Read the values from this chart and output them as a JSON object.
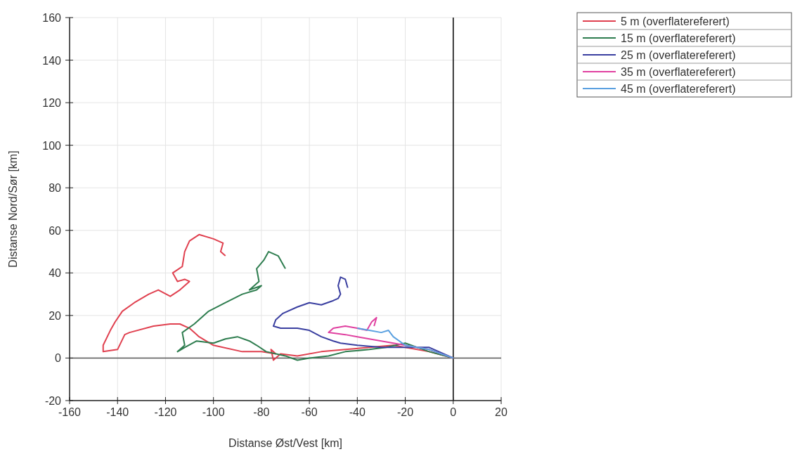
{
  "chart_data": {
    "type": "line",
    "xlabel": "Distanse Øst/Vest [km]",
    "ylabel": "Distanse Nord/Sør [km]",
    "xlim": [
      -160,
      20
    ],
    "ylim": [
      -20,
      160
    ],
    "xticks": [
      -160,
      -140,
      -120,
      -100,
      -80,
      -60,
      -40,
      -20,
      0,
      20
    ],
    "yticks": [
      -20,
      0,
      20,
      40,
      60,
      80,
      100,
      120,
      140,
      160
    ],
    "grid": true,
    "legend": "top right",
    "line_style": "solid",
    "marker": "none",
    "ref_lines": [
      {
        "axis": "x",
        "value": 0,
        "color": "#000000"
      },
      {
        "axis": "y",
        "value": 0,
        "color": "#555555"
      }
    ],
    "series": [
      {
        "name": "5 m (overflatereferert)",
        "color": "#e0404f",
        "x": [
          0,
          -10,
          -25,
          -35,
          -45,
          -55,
          -65,
          -72,
          -75,
          -76,
          -74,
          -80,
          -88,
          -100,
          -106,
          -108,
          -110,
          -114,
          -118,
          -125,
          -135,
          -137,
          -140,
          -146,
          -146,
          -143,
          -141,
          -138,
          -133,
          -127,
          -123,
          -118,
          -114,
          -110,
          -112,
          -115,
          -117,
          -113,
          -112,
          -110,
          -106,
          -100,
          -96,
          -97,
          -95
        ],
        "values": [
          0,
          3,
          6,
          5,
          4,
          3,
          1,
          2,
          -1,
          4,
          2,
          3,
          3,
          6,
          10,
          12,
          14,
          16,
          16,
          15,
          12,
          11,
          4,
          3,
          6,
          13,
          17,
          22,
          26,
          30,
          32,
          29,
          32,
          36,
          37,
          36,
          40,
          43,
          50,
          55,
          58,
          56,
          54,
          50,
          48
        ]
      },
      {
        "name": "15 m (overflatereferert)",
        "color": "#2e7d4f",
        "x": [
          0,
          -10,
          -20,
          -28,
          -35,
          -45,
          -52,
          -60,
          -65,
          -70,
          -78,
          -82,
          -85,
          -90,
          -95,
          -100,
          -107,
          -112,
          -115,
          -112,
          -113,
          -108,
          -102,
          -95,
          -88,
          -82,
          -80,
          -85,
          -81,
          -82,
          -79,
          -77,
          -73,
          -71,
          -70
        ],
        "values": [
          0,
          3,
          7,
          5,
          4,
          3,
          1,
          0,
          -1,
          1,
          3,
          6,
          8,
          10,
          9,
          7,
          8,
          5,
          3,
          6,
          12,
          16,
          22,
          26,
          30,
          32,
          34,
          32,
          36,
          42,
          46,
          50,
          48,
          44,
          42
        ]
      },
      {
        "name": "25 m (overflatereferert)",
        "color": "#3a3fa0",
        "x": [
          0,
          -10,
          -20,
          -30,
          -40,
          -47,
          -50,
          -55,
          -60,
          -65,
          -72,
          -75,
          -74,
          -71,
          -65,
          -60,
          -55,
          -50,
          -48,
          -47,
          -48,
          -47,
          -45,
          -44
        ],
        "values": [
          0,
          5,
          5,
          5,
          6,
          7,
          8,
          10,
          13,
          14,
          14,
          15,
          18,
          21,
          24,
          26,
          25,
          27,
          28,
          30,
          34,
          38,
          37,
          33
        ]
      },
      {
        "name": "35 m (overflatereferert)",
        "color": "#e040a0",
        "x": [
          0,
          -10,
          -20,
          -30,
          -40,
          -45,
          -52,
          -50,
          -45,
          -40,
          -36,
          -34,
          -32,
          -33
        ],
        "values": [
          0,
          4,
          6,
          8,
          10,
          11,
          12,
          14,
          15,
          14,
          13,
          17,
          19,
          15
        ]
      },
      {
        "name": "45 m (overflatereferert)",
        "color": "#5aa0e0",
        "x": [
          0,
          -10,
          -20,
          -25,
          -27,
          -30,
          -35,
          -40
        ],
        "values": [
          0,
          4,
          6,
          10,
          13,
          12,
          13,
          14
        ]
      }
    ]
  }
}
